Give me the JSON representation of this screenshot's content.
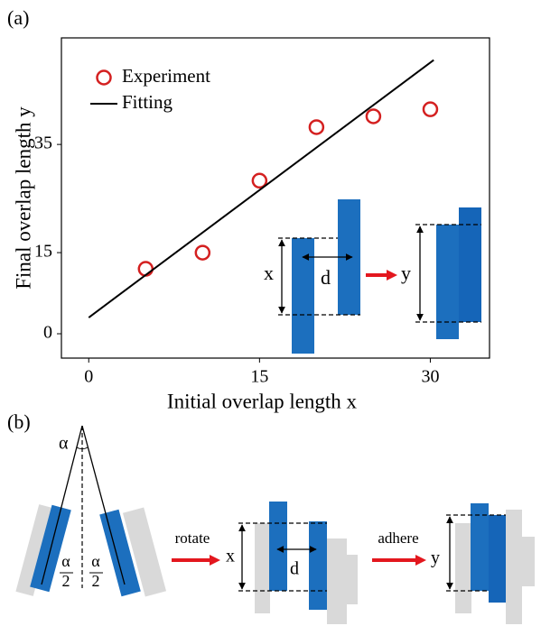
{
  "chart_data": {
    "type": "scatter",
    "x_label": "Initial overlap length x",
    "y_label": "Final overlap length y",
    "xlim": [
      -2.4,
      35.2
    ],
    "xticks": [
      0,
      15,
      30
    ],
    "ylim": [
      -4.5,
      54.7
    ],
    "yticks": [
      0,
      15,
      35
    ],
    "legend": "upper left",
    "series": [
      {
        "name": "Experiment",
        "color": "#d42020",
        "marker": "circle",
        "x": [
          5,
          10,
          15,
          20,
          25,
          30
        ],
        "values": [
          12,
          15,
          28.3,
          38.2,
          40.2,
          41.5
        ]
      },
      {
        "name": "Fitting",
        "color": "#000000",
        "marker": "line",
        "x": [
          0,
          30.3
        ],
        "values": [
          3,
          50.6
        ]
      }
    ]
  },
  "panels": [
    "(a)",
    "(b)"
  ],
  "diagram": {
    "x": "x",
    "d": "d",
    "y": "y",
    "alpha": "α",
    "alpha_num": "α",
    "alpha_den": "2",
    "rotate": "rotate",
    "adhere": "adhere"
  }
}
